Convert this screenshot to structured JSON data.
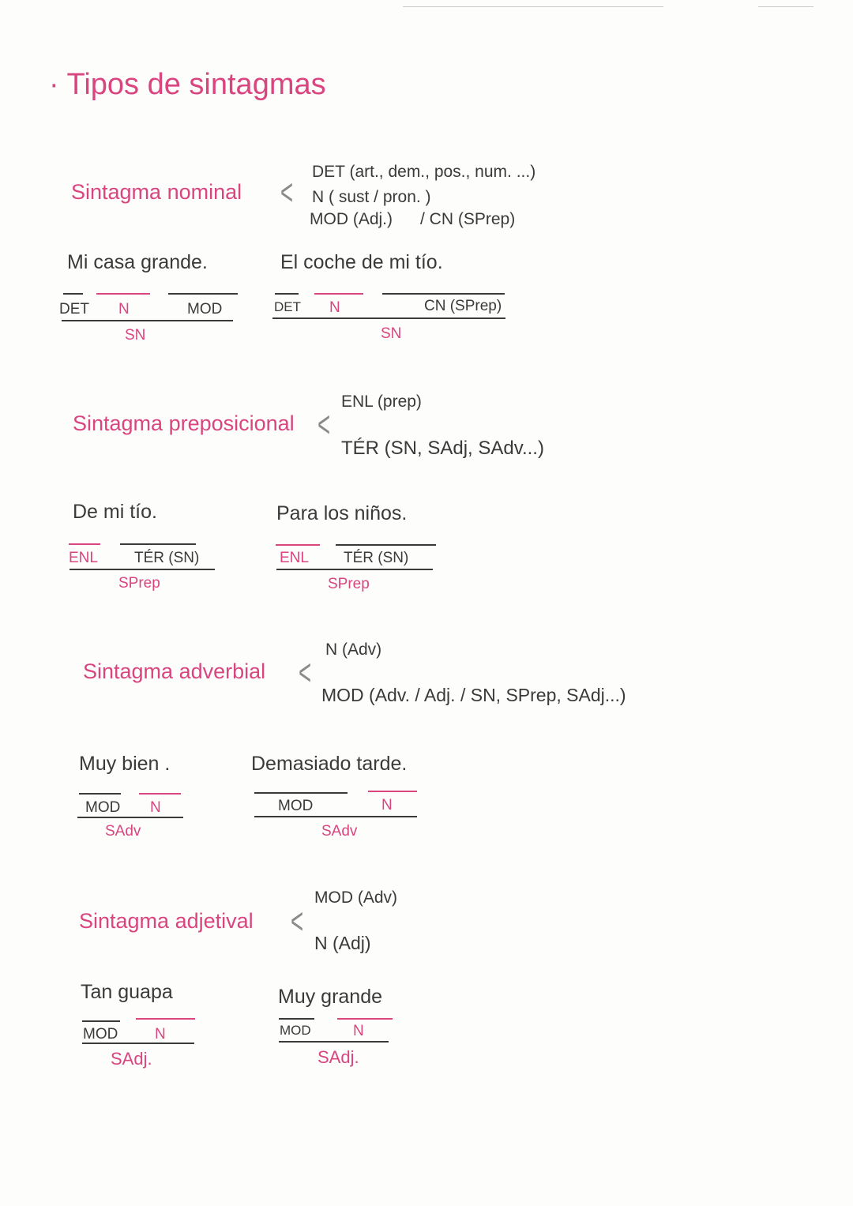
{
  "title": "· Tipos de sintagmas",
  "nominal": {
    "heading": "Sintagma nominal",
    "lines": [
      "DET (art., dem., pos., num. ...)",
      "N ( sust / pron. )",
      "MOD (Adj.)      / CN (SPrep)"
    ],
    "ex1": {
      "sentence": "Mi casa grande.",
      "labels": [
        "DET",
        "N",
        "MOD"
      ],
      "phrase": "SN"
    },
    "ex2": {
      "sentence": "El coche de mi tío.",
      "labels": [
        "DET",
        "N",
        "CN (SPrep)"
      ],
      "phrase": "SN"
    }
  },
  "prepositional": {
    "heading": "Sintagma preposicional",
    "lines": [
      "ENL (prep)",
      "TÉR (SN, SAdj, SAdv...)"
    ],
    "ex1": {
      "sentence": "De mi tío.",
      "labels": [
        "ENL",
        "TÉR (SN)"
      ],
      "phrase": "SPrep"
    },
    "ex2": {
      "sentence": "Para los niños.",
      "labels": [
        "ENL",
        "TÉR (SN)"
      ],
      "phrase": "SPrep"
    }
  },
  "adverbial": {
    "heading": "Sintagma adverbial",
    "lines": [
      "N (Adv)",
      "MOD (Adv. / Adj. / SN, SPrep, SAdj...)"
    ],
    "ex1": {
      "sentence": "Muy bien .",
      "labels": [
        "MOD",
        "N"
      ],
      "phrase": "SAdv"
    },
    "ex2": {
      "sentence": "Demasiado tarde.",
      "labels": [
        "MOD",
        "N"
      ],
      "phrase": "SAdv"
    }
  },
  "adjectival": {
    "heading": "Sintagma adjetival",
    "lines": [
      "MOD (Adv)",
      "N (Adj)"
    ],
    "ex1": {
      "sentence": "Tan guapa",
      "labels": [
        "MOD",
        "N"
      ],
      "phrase": "SAdj."
    },
    "ex2": {
      "sentence": "Muy grande",
      "labels": [
        "MOD",
        "N"
      ],
      "phrase": "SAdj."
    }
  },
  "bracket_symbol": "<",
  "colors": {
    "accent": "#d8457f",
    "ink": "#3a3a3a"
  }
}
